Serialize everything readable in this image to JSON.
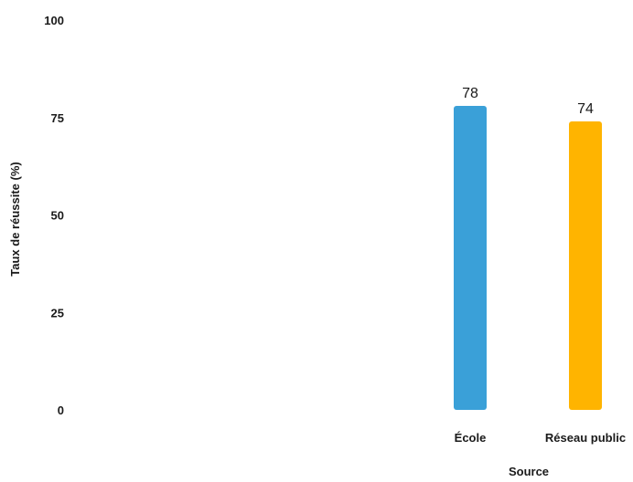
{
  "chart_data": {
    "type": "bar",
    "title": "",
    "xlabel": "Source",
    "ylabel": "Taux de réussite (%)",
    "ylim": [
      0,
      100
    ],
    "yticks": [
      0,
      25,
      50,
      75,
      100
    ],
    "categories": [
      "École",
      "Réseau public"
    ],
    "values": [
      78,
      74
    ],
    "colors": [
      "#3aa0d8",
      "#ffb400"
    ],
    "grid": false,
    "legend": "none"
  }
}
